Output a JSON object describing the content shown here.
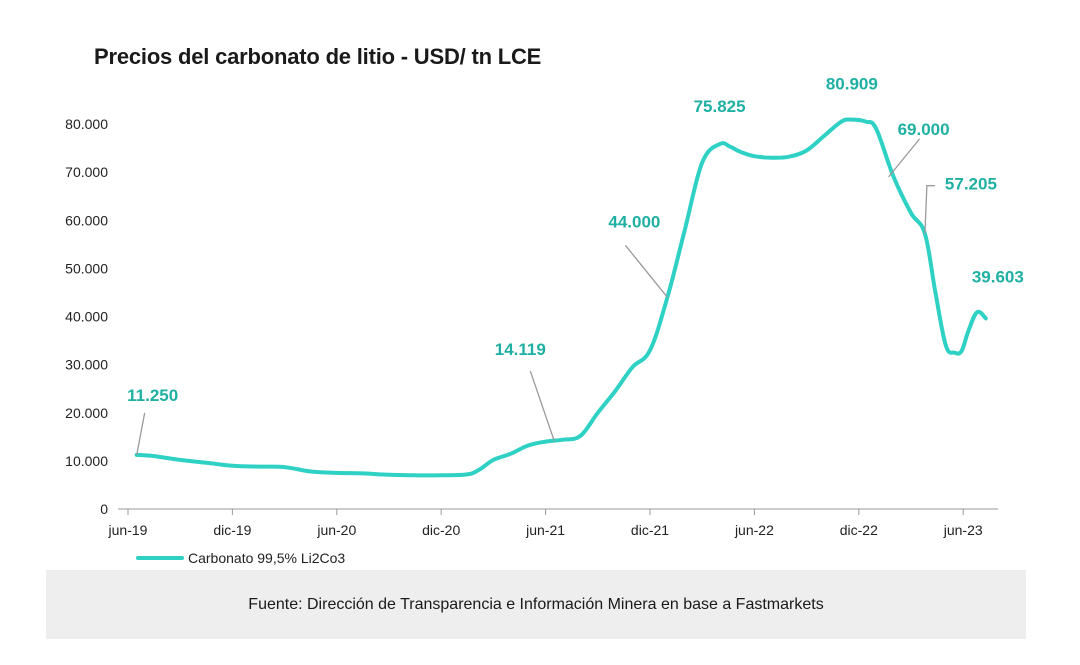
{
  "chart_data": {
    "type": "line",
    "title": "Precios del carbonato de litio - USD/ tn LCE",
    "xlabel": "",
    "ylabel": "",
    "ylim": [
      0,
      80000
    ],
    "yticks": [
      0,
      10000,
      20000,
      30000,
      40000,
      50000,
      60000,
      70000,
      80000
    ],
    "ytick_labels": [
      "0",
      "10.000",
      "20.000",
      "30.000",
      "40.000",
      "50.000",
      "60.000",
      "70.000",
      "80.000"
    ],
    "xlim_months": [
      0,
      50
    ],
    "xticks_months": [
      0,
      6,
      12,
      18,
      24,
      30,
      36,
      42,
      48
    ],
    "xtick_labels": [
      "jun-19",
      "dic-19",
      "jun-20",
      "dic-20",
      "jun-21",
      "dic-21",
      "jun-22",
      "dic-22",
      "jun-23"
    ],
    "series": [
      {
        "name": "Carbonato 99,5% Li2Co3",
        "color": "#2ed1c4",
        "x_months": [
          0.5,
          1.5,
          3,
          4.5,
          6,
          7.5,
          9,
          10.5,
          12,
          13.5,
          15,
          16.5,
          18,
          19.5,
          20.2,
          21,
          22,
          23,
          24,
          25,
          26,
          27,
          28,
          29,
          30,
          31,
          32,
          33,
          34,
          34.6,
          35.2,
          36,
          37,
          38,
          39,
          40,
          41,
          41.6,
          42.4,
          43,
          44,
          45,
          45.8,
          46.4,
          47,
          47.5,
          47.9,
          48.3,
          48.8,
          49.3
        ],
        "values": [
          11250,
          11000,
          10200,
          9600,
          9000,
          8800,
          8700,
          7800,
          7500,
          7400,
          7100,
          7000,
          7000,
          7200,
          8200,
          10200,
          11500,
          13200,
          14000,
          14400,
          15200,
          20000,
          24500,
          29500,
          33000,
          44000,
          58000,
          72000,
          75825,
          75300,
          74200,
          73300,
          73000,
          73200,
          74500,
          77500,
          80500,
          80909,
          80500,
          79000,
          69000,
          61500,
          57205,
          45000,
          34000,
          32500,
          32800,
          37000,
          40900,
          39603
        ]
      }
    ],
    "annotations": [
      {
        "text": "11.250",
        "x_month": 0.5,
        "value": 11250
      },
      {
        "text": "14.119",
        "x_month": 24.5,
        "value": 14119
      },
      {
        "text": "44.000",
        "x_month": 31,
        "value": 44000
      },
      {
        "text": "75.825",
        "x_month": 34,
        "value": 75825
      },
      {
        "text": "80.909",
        "x_month": 41.6,
        "value": 80909
      },
      {
        "text": "69.000",
        "x_month": 44,
        "value": 69000
      },
      {
        "text": "57.205",
        "x_month": 45.8,
        "value": 57205
      },
      {
        "text": "39.603",
        "x_month": 49.3,
        "value": 39603
      }
    ],
    "legend_position": "bottom-left",
    "grid": false
  },
  "footer": {
    "source_text": "Fuente: Dirección de Transparencia e Información Minera en base a Fastmarkets"
  }
}
